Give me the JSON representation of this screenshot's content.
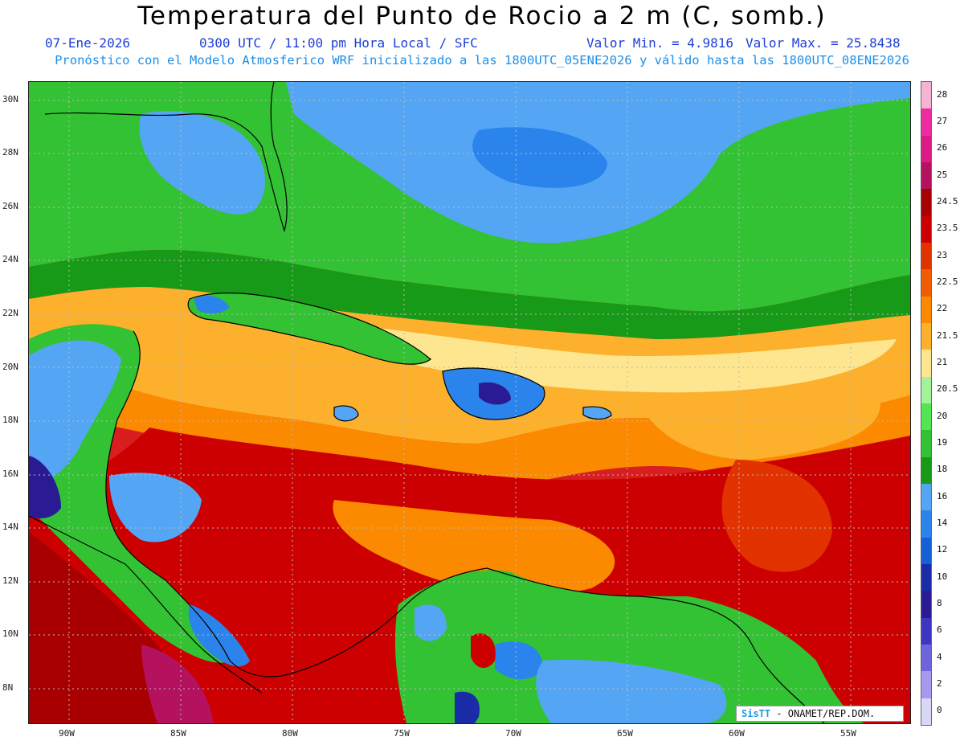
{
  "header": {
    "title": "Temperatura del Punto de Rocio a 2 m (C, somb.)",
    "date": "07-Ene-2026",
    "time": "0300 UTC / 11:00 pm Hora Local / SFC",
    "valmin": "Valor Min. = 4.9816",
    "valmax": "Valor Max. = 25.8438",
    "forecast": "Pronóstico con el Modelo Atmosferico WRF inicializado a las 1800UTC_05ENE2026 y válido hasta las  1800UTC_08ENE2026"
  },
  "axes": {
    "lat_labels": [
      "30N",
      "28N",
      "26N",
      "24N",
      "22N",
      "20N",
      "18N",
      "16N",
      "14N",
      "12N",
      "10N",
      "8N"
    ],
    "lon_labels": [
      "90W",
      "85W",
      "80W",
      "75W",
      "70W",
      "65W",
      "60W",
      "55W"
    ]
  },
  "colorbar": {
    "levels": [
      "28",
      "27",
      "26",
      "25",
      "24.5",
      "23.5",
      "23",
      "22.5",
      "22",
      "21.5",
      "21",
      "20.5",
      "20",
      "19",
      "18",
      "16",
      "14",
      "12",
      "10",
      "8",
      "6",
      "4",
      "2",
      "0"
    ],
    "colors": [
      "#f6b3d3",
      "#f02aa0",
      "#dd1a86",
      "#b4125e",
      "#a80000",
      "#cc0000",
      "#e23200",
      "#f25c00",
      "#fb8a00",
      "#fdb02c",
      "#fde68f",
      "#a4f29a",
      "#52e653",
      "#33c233",
      "#179a17",
      "#54a6f5",
      "#2a84eb",
      "#1461d7",
      "#1b2ca8",
      "#2a1b95",
      "#3e36c2",
      "#6e64dc",
      "#a798ee",
      "#d9d7f8"
    ]
  },
  "credit": {
    "brand": "SisTT",
    "text": " - ONAMET/REP.DOM."
  }
}
